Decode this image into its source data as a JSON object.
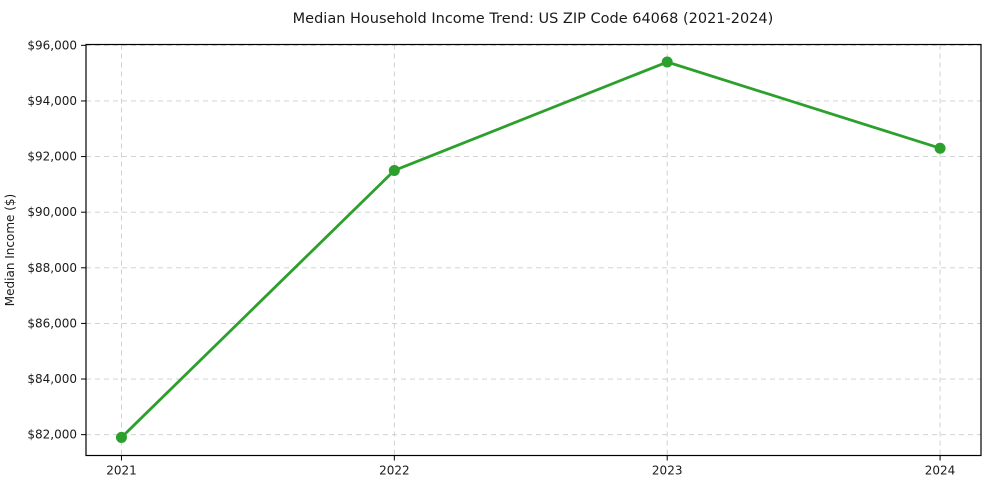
{
  "chart_data": {
    "type": "line",
    "title": "Median Household Income Trend: US ZIP Code 64068 (2021-2024)",
    "xlabel": "",
    "ylabel": "Median Income ($)",
    "x": [
      2021,
      2022,
      2023,
      2024
    ],
    "xtick_labels": [
      "2021",
      "2022",
      "2023",
      "2024"
    ],
    "series": [
      {
        "name": "Median Income",
        "values": [
          81900,
          91500,
          95400,
          92300
        ]
      }
    ],
    "yticks": [
      82000,
      84000,
      86000,
      88000,
      90000,
      92000,
      94000,
      96000
    ],
    "ytick_labels": [
      "$82,000",
      "$84,000",
      "$86,000",
      "$88,000",
      "$90,000",
      "$92,000",
      "$94,000",
      "$96,000"
    ],
    "xlim": [
      2020.87,
      2024.15
    ],
    "ylim": [
      81250,
      96030
    ],
    "grid": true,
    "legend": "none",
    "colors": {
      "line": "#2ca02c",
      "marker": "#2ca02c",
      "grid": "#cccccc",
      "spine": "#000000",
      "text": "#1a1a1a"
    }
  }
}
